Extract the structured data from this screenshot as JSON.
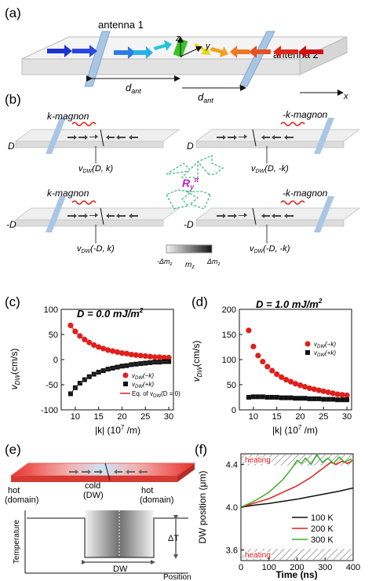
{
  "panels": {
    "a": {
      "tag": "(a)",
      "antenna1": "antenna 1",
      "antenna2": "antenna 2",
      "axis_z": "z",
      "axis_y": "y",
      "axis_x": "x",
      "d_ant": "d",
      "d_ant_sub": "ant"
    },
    "b": {
      "tag": "(b)",
      "k_magnon": "k-magnon",
      "minus_k_magnon": "-k-magnon",
      "D": "D",
      "minus_D": "-D",
      "v1": "v",
      "v_sub": "DW",
      "v_args": [
        "(D, k)",
        "(D, -k)",
        "(-D, k)",
        "(-D, -k)"
      ],
      "R": "R",
      "R_sub": "y",
      "R_sup": "π",
      "mz": "m",
      "mz_sub": "z",
      "neg_dmz": "-Δm",
      "dmz": "Δm",
      "dmz_sub": "z"
    },
    "c": {
      "tag": "(c)",
      "title": "D = 0.0 mJ/m",
      "title_sup": "2",
      "ylabel": "v",
      "ylabel_sub": "DW",
      "ylabel_unit": "(cm/s)",
      "xlabel": "|k| (10",
      "xlabel_sup": "7",
      "xlabel_tail": " /m)",
      "legend": [
        "v",
        "v",
        "Eq. of v"
      ],
      "legend_args": [
        "(−k)",
        "(+k)",
        "(D = 0)"
      ],
      "legend_sub": "DW"
    },
    "d": {
      "tag": "(d)",
      "title": "D = 1.0 mJ/m",
      "title_sup": "2",
      "ylabel": "v",
      "ylabel_sub": "DW",
      "ylabel_unit": "(cm/s)",
      "xlabel": "|k| (10",
      "xlabel_sup": "7",
      "xlabel_tail": " /m)",
      "legend": [
        "v",
        "v"
      ],
      "legend_args": [
        "(−k)",
        "(+k)"
      ],
      "legend_sub": "DW"
    },
    "e": {
      "tag": "(e)",
      "hot1": "hot",
      "hot1_sub": "(domain)",
      "cold": "cold",
      "cold_sub": "(DW)",
      "hot2": "hot",
      "hot2_sub": "(domain)",
      "ylabel": "Temperature",
      "xlabel": "Position",
      "delta_t": "ΔT",
      "dw": "DW"
    },
    "f": {
      "tag": "(f)",
      "ylabel": "DW position (μm)",
      "xlabel": "Time (ns)",
      "heating_top": "heating",
      "heating_bottom": "heating",
      "legend": [
        "100 K",
        "200 K",
        "300 K"
      ]
    }
  },
  "colors": {
    "red": "#e0201c",
    "black": "#111111",
    "green": "#3fae2a",
    "antenna": "#a9c6e4"
  },
  "chart_data": [
    {
      "panel": "c",
      "type": "scatter",
      "title": "D = 0.0 mJ/m2",
      "xlabel": "|k| (10^7 /m)",
      "ylabel": "v_DW (cm/s)",
      "xlim": [
        7,
        31
      ],
      "ylim": [
        -100,
        100
      ],
      "xticks": [
        10,
        15,
        20,
        25,
        30
      ],
      "yticks": [
        -100,
        -50,
        0,
        50,
        100
      ],
      "x": [
        9,
        10,
        11,
        12,
        13,
        14,
        15,
        16,
        17,
        18,
        19,
        20,
        21,
        22,
        23,
        24,
        25,
        26,
        27,
        28,
        29,
        30
      ],
      "series": [
        {
          "name": "v_DW(-k)",
          "marker": "circle",
          "color": "#e0201c",
          "values": [
            68,
            56,
            47,
            40,
            34,
            29,
            25,
            22,
            19,
            17,
            15,
            13,
            12,
            10,
            9,
            8,
            7,
            6,
            5,
            5,
            4,
            4
          ]
        },
        {
          "name": "v_DW(+k)",
          "marker": "square",
          "color": "#111111",
          "values": [
            -68,
            -56,
            -47,
            -40,
            -34,
            -29,
            -25,
            -22,
            -19,
            -17,
            -15,
            -13,
            -12,
            -10,
            -9,
            -8,
            -7,
            -6,
            -5,
            -5,
            -4,
            -4
          ]
        },
        {
          "name": "Eq. of v_DW(D=0)",
          "marker": "line",
          "color": "#e0201c",
          "mirror": true,
          "values": [
            68,
            56,
            47,
            40,
            34,
            29,
            25,
            22,
            19,
            17,
            15,
            13,
            12,
            10,
            9,
            8,
            7,
            6,
            5,
            5,
            4,
            4
          ]
        }
      ]
    },
    {
      "panel": "d",
      "type": "scatter",
      "title": "D = 1.0 mJ/m2",
      "xlabel": "|k| (10^7 /m)",
      "ylabel": "v_DW (cm/s)",
      "xlim": [
        7,
        31
      ],
      "ylim": [
        0,
        200
      ],
      "xticks": [
        10,
        15,
        20,
        25,
        30
      ],
      "yticks": [
        0,
        50,
        100,
        150,
        200
      ],
      "x": [
        9,
        10,
        11,
        12,
        13,
        14,
        15,
        16,
        17,
        18,
        19,
        20,
        21,
        22,
        23,
        24,
        25,
        26,
        27,
        28,
        29,
        30
      ],
      "series": [
        {
          "name": "v_DW(-k)",
          "marker": "circle",
          "color": "#e0201c",
          "values": [
            158,
            126,
            108,
            96,
            86,
            78,
            71,
            65,
            60,
            56,
            52,
            49,
            46,
            43,
            41,
            39,
            37,
            35,
            33,
            31,
            30,
            29
          ]
        },
        {
          "name": "v_DW(+k)",
          "marker": "square",
          "color": "#111111",
          "values": [
            25,
            26,
            26,
            26,
            25,
            25,
            25,
            24,
            24,
            24,
            23,
            23,
            23,
            22,
            22,
            22,
            21,
            21,
            21,
            20,
            20,
            20
          ]
        }
      ]
    },
    {
      "panel": "f",
      "type": "line",
      "xlabel": "Time (ns)",
      "ylabel": "DW position (μm)",
      "xlim": [
        0,
        400
      ],
      "ylim": [
        3.5,
        4.5
      ],
      "xticks": [
        0,
        100,
        200,
        300,
        400
      ],
      "yticks": [
        3.6,
        4.0,
        4.4
      ],
      "series": [
        {
          "name": "100 K",
          "color": "#111111",
          "x": [
            0,
            50,
            100,
            150,
            200,
            250,
            300,
            350,
            400
          ],
          "values": [
            4.0,
            4.02,
            4.035,
            4.055,
            4.075,
            4.1,
            4.125,
            4.15,
            4.18
          ]
        },
        {
          "name": "200 K",
          "color": "#e0201c",
          "x": [
            0,
            50,
            100,
            150,
            200,
            250,
            280,
            300,
            320,
            340,
            360,
            380,
            400
          ],
          "values": [
            4.0,
            4.04,
            4.08,
            4.14,
            4.2,
            4.28,
            4.34,
            4.38,
            4.42,
            4.4,
            4.43,
            4.41,
            4.44
          ]
        },
        {
          "name": "300 K",
          "color": "#3fae2a",
          "x": [
            0,
            50,
            100,
            150,
            180,
            200,
            215,
            230,
            250,
            270,
            290,
            310,
            330,
            350,
            370,
            390,
            400
          ],
          "values": [
            4.0,
            4.06,
            4.14,
            4.26,
            4.36,
            4.44,
            4.41,
            4.46,
            4.4,
            4.5,
            4.42,
            4.46,
            4.41,
            4.47,
            4.42,
            4.45,
            4.43
          ]
        }
      ]
    }
  ]
}
